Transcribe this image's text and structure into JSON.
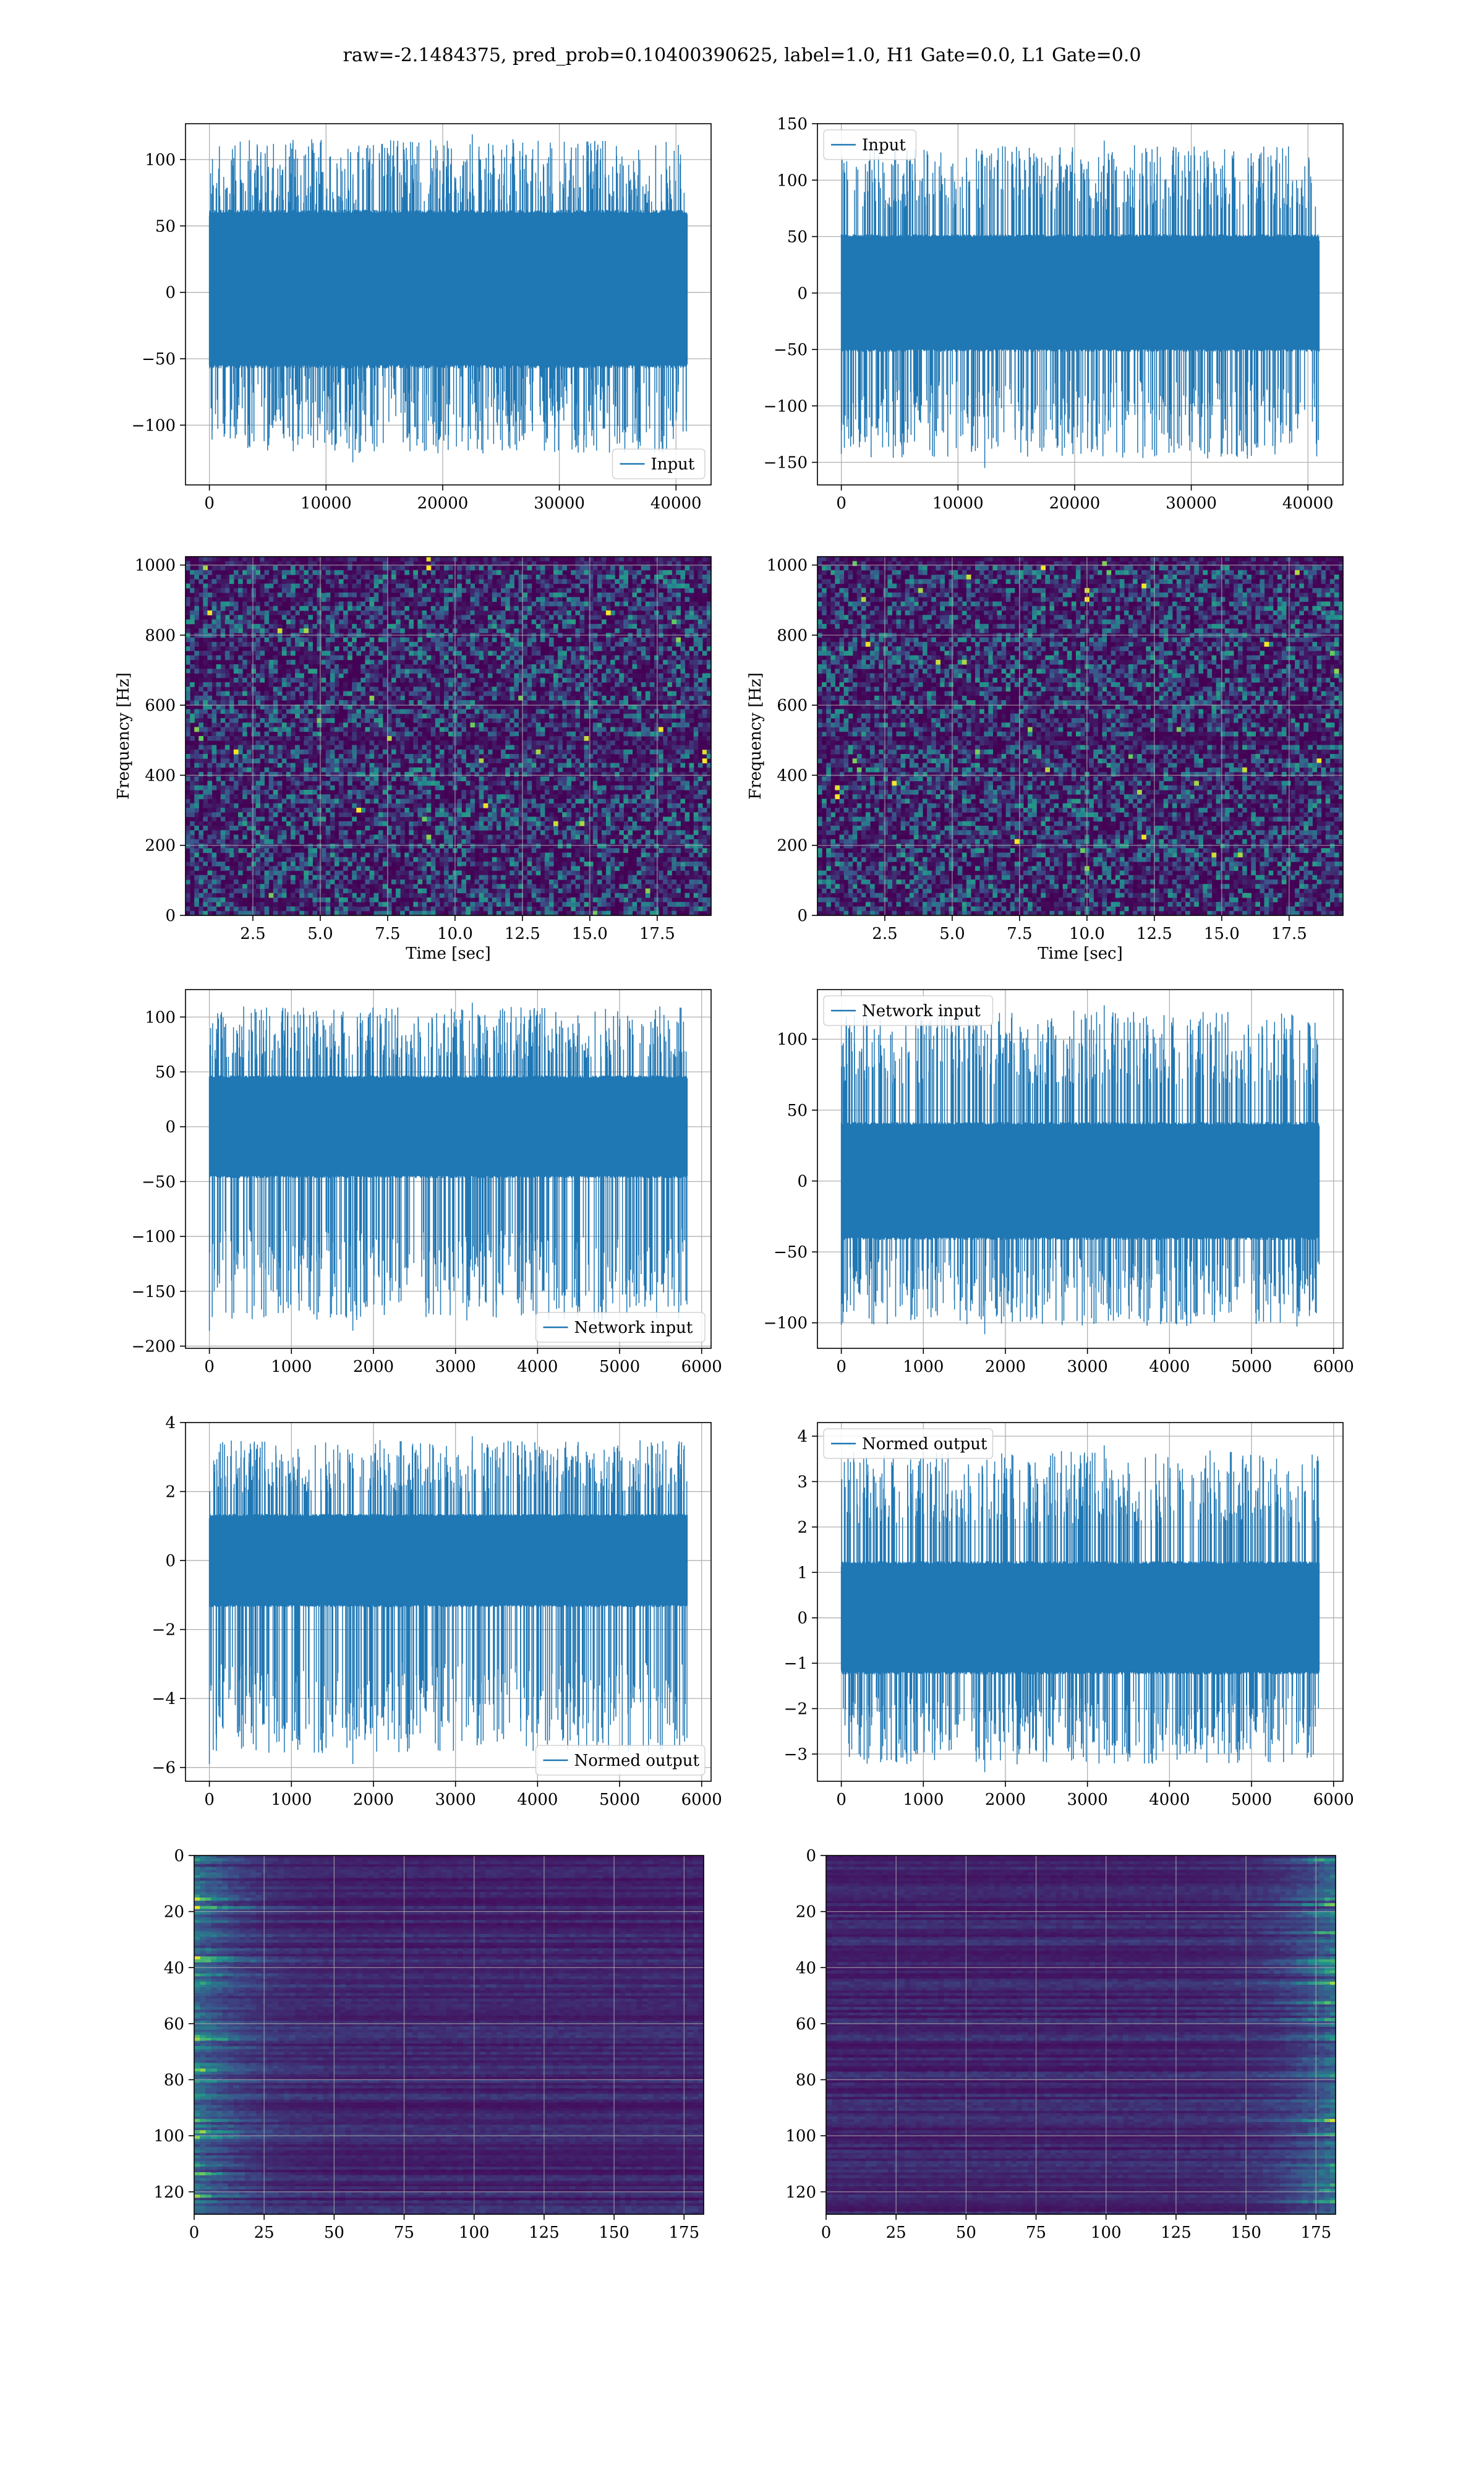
{
  "suptitle": "raw=-2.1484375, pred_prob=0.10400390625, label=1.0, H1 Gate=0.0, L1 Gate=0.0",
  "colors": {
    "series": "#1f77b4",
    "grid": "#b0b0b0",
    "viridis_low": "#440154",
    "viridis_high": "#fde725"
  },
  "chart_data": [
    {
      "type": "line",
      "name": "input-left",
      "series": [
        {
          "name": "",
          "color": "#1f77b4"
        }
      ],
      "x": {
        "min": 0,
        "max": 40960,
        "lim": [
          -2048,
          43008
        ],
        "ticks": [
          0,
          10000,
          20000,
          30000,
          40000
        ]
      },
      "ylim": [
        -145,
        127
      ],
      "yticks": [
        -100,
        -50,
        0,
        50,
        100
      ],
      "legend": {
        "labels": [
          "Input"
        ],
        "loc": "lower-right"
      },
      "amplitude": {
        "core_low": -55,
        "core_high": 60,
        "peak_min": -128,
        "peak_max": 119
      },
      "grid": true,
      "xlabel": "",
      "ylabel": ""
    },
    {
      "type": "line",
      "name": "input-right",
      "series": [
        {
          "name": "",
          "color": "#1f77b4"
        }
      ],
      "x": {
        "min": 0,
        "max": 40960,
        "lim": [
          -2048,
          43008
        ],
        "ticks": [
          0,
          10000,
          20000,
          30000,
          40000
        ]
      },
      "ylim": [
        -170,
        150
      ],
      "yticks": [
        -150,
        -100,
        -50,
        0,
        50,
        100,
        150
      ],
      "legend": {
        "labels": [
          "Input"
        ],
        "loc": "upper-left"
      },
      "amplitude": {
        "core_low": -50,
        "core_high": 50,
        "peak_min": -155,
        "peak_max": 135
      },
      "grid": true,
      "xlabel": "",
      "ylabel": ""
    },
    {
      "type": "heatmap",
      "name": "spectrogram-left",
      "xlim": [
        0,
        19.5
      ],
      "xticks": [
        2.5,
        5.0,
        7.5,
        10.0,
        12.5,
        15.0,
        17.5
      ],
      "xticklabels": [
        "2.5",
        "5.0",
        "7.5",
        "10.0",
        "12.5",
        "15.0",
        "17.5"
      ],
      "ylim": [
        0,
        1024
      ],
      "yticks": [
        0,
        200,
        400,
        600,
        800,
        1000
      ],
      "xlabel": "Time [sec]",
      "ylabel": "Frequency [Hz]",
      "colormap": "viridis",
      "grid": true
    },
    {
      "type": "heatmap",
      "name": "spectrogram-right",
      "xlim": [
        0,
        19.5
      ],
      "xticks": [
        2.5,
        5.0,
        7.5,
        10.0,
        12.5,
        15.0,
        17.5
      ],
      "xticklabels": [
        "2.5",
        "5.0",
        "7.5",
        "10.0",
        "12.5",
        "15.0",
        "17.5"
      ],
      "ylim": [
        0,
        1024
      ],
      "yticks": [
        0,
        200,
        400,
        600,
        800,
        1000
      ],
      "xlabel": "Time [sec]",
      "ylabel": "Frequency [Hz]",
      "colormap": "viridis",
      "grid": true
    },
    {
      "type": "line",
      "name": "network-input-left",
      "series": [
        {
          "name": "",
          "color": "#1f77b4"
        }
      ],
      "x": {
        "min": 0,
        "max": 5824,
        "lim": [
          -291,
          6115
        ],
        "ticks": [
          0,
          1000,
          2000,
          3000,
          4000,
          5000,
          6000
        ]
      },
      "ylim": [
        -202,
        125
      ],
      "yticks": [
        -200,
        -150,
        -100,
        -50,
        0,
        50,
        100
      ],
      "legend": {
        "labels": [
          "Network input"
        ],
        "loc": "lower-right"
      },
      "amplitude": {
        "core_low": -45,
        "core_high": 45,
        "peak_min": -186,
        "peak_max": 113,
        "first_spike": -186
      },
      "grid": true,
      "xlabel": "",
      "ylabel": ""
    },
    {
      "type": "line",
      "name": "network-input-right",
      "series": [
        {
          "name": "",
          "color": "#1f77b4"
        }
      ],
      "x": {
        "min": 0,
        "max": 5824,
        "lim": [
          -291,
          6115
        ],
        "ticks": [
          0,
          1000,
          2000,
          3000,
          4000,
          5000,
          6000
        ]
      },
      "ylim": [
        -118,
        135
      ],
      "yticks": [
        -100,
        -50,
        0,
        50,
        100
      ],
      "legend": {
        "labels": [
          "Network input"
        ],
        "loc": "upper-left"
      },
      "amplitude": {
        "core_low": -40,
        "core_high": 40,
        "peak_min": -108,
        "peak_max": 124
      },
      "grid": true,
      "xlabel": "",
      "ylabel": ""
    },
    {
      "type": "line",
      "name": "normed-output-left",
      "series": [
        {
          "name": "",
          "color": "#1f77b4"
        }
      ],
      "x": {
        "min": 0,
        "max": 5824,
        "lim": [
          -291,
          6115
        ],
        "ticks": [
          0,
          1000,
          2000,
          3000,
          4000,
          5000,
          6000
        ]
      },
      "ylim": [
        -6.4,
        4.0
      ],
      "yticks": [
        -6,
        -4,
        -2,
        0,
        2,
        4
      ],
      "legend": {
        "labels": [
          "Normed output"
        ],
        "loc": "lower-right"
      },
      "amplitude": {
        "core_low": -1.3,
        "core_high": 1.3,
        "peak_min": -5.9,
        "peak_max": 3.6,
        "first_spike": -5.9
      },
      "grid": true,
      "xlabel": "",
      "ylabel": ""
    },
    {
      "type": "line",
      "name": "normed-output-right",
      "series": [
        {
          "name": "",
          "color": "#1f77b4"
        }
      ],
      "x": {
        "min": 0,
        "max": 5824,
        "lim": [
          -291,
          6115
        ],
        "ticks": [
          0,
          1000,
          2000,
          3000,
          4000,
          5000,
          6000
        ]
      },
      "ylim": [
        -3.6,
        4.3
      ],
      "yticks": [
        -3,
        -2,
        -1,
        0,
        1,
        2,
        3,
        4
      ],
      "legend": {
        "labels": [
          "Normed output"
        ],
        "loc": "upper-left"
      },
      "amplitude": {
        "core_low": -1.2,
        "core_high": 1.2,
        "peak_min": -3.4,
        "peak_max": 3.8
      },
      "grid": true,
      "xlabel": "",
      "ylabel": ""
    },
    {
      "type": "heatmap",
      "name": "feature-map-left",
      "xlim": [
        0,
        182
      ],
      "xticks": [
        0,
        25,
        50,
        75,
        100,
        125,
        150,
        175
      ],
      "ylim": [
        128,
        0
      ],
      "yticks": [
        0,
        20,
        40,
        60,
        80,
        100,
        120
      ],
      "colormap": "viridis",
      "grid": true,
      "bright_side": "left",
      "xlabel": "",
      "ylabel": ""
    },
    {
      "type": "heatmap",
      "name": "feature-map-right",
      "xlim": [
        0,
        182
      ],
      "xticks": [
        0,
        25,
        50,
        75,
        100,
        125,
        150,
        175
      ],
      "ylim": [
        128,
        0
      ],
      "yticks": [
        0,
        20,
        40,
        60,
        80,
        100,
        120
      ],
      "colormap": "viridis",
      "grid": true,
      "bright_side": "right",
      "xlabel": "",
      "ylabel": ""
    }
  ]
}
